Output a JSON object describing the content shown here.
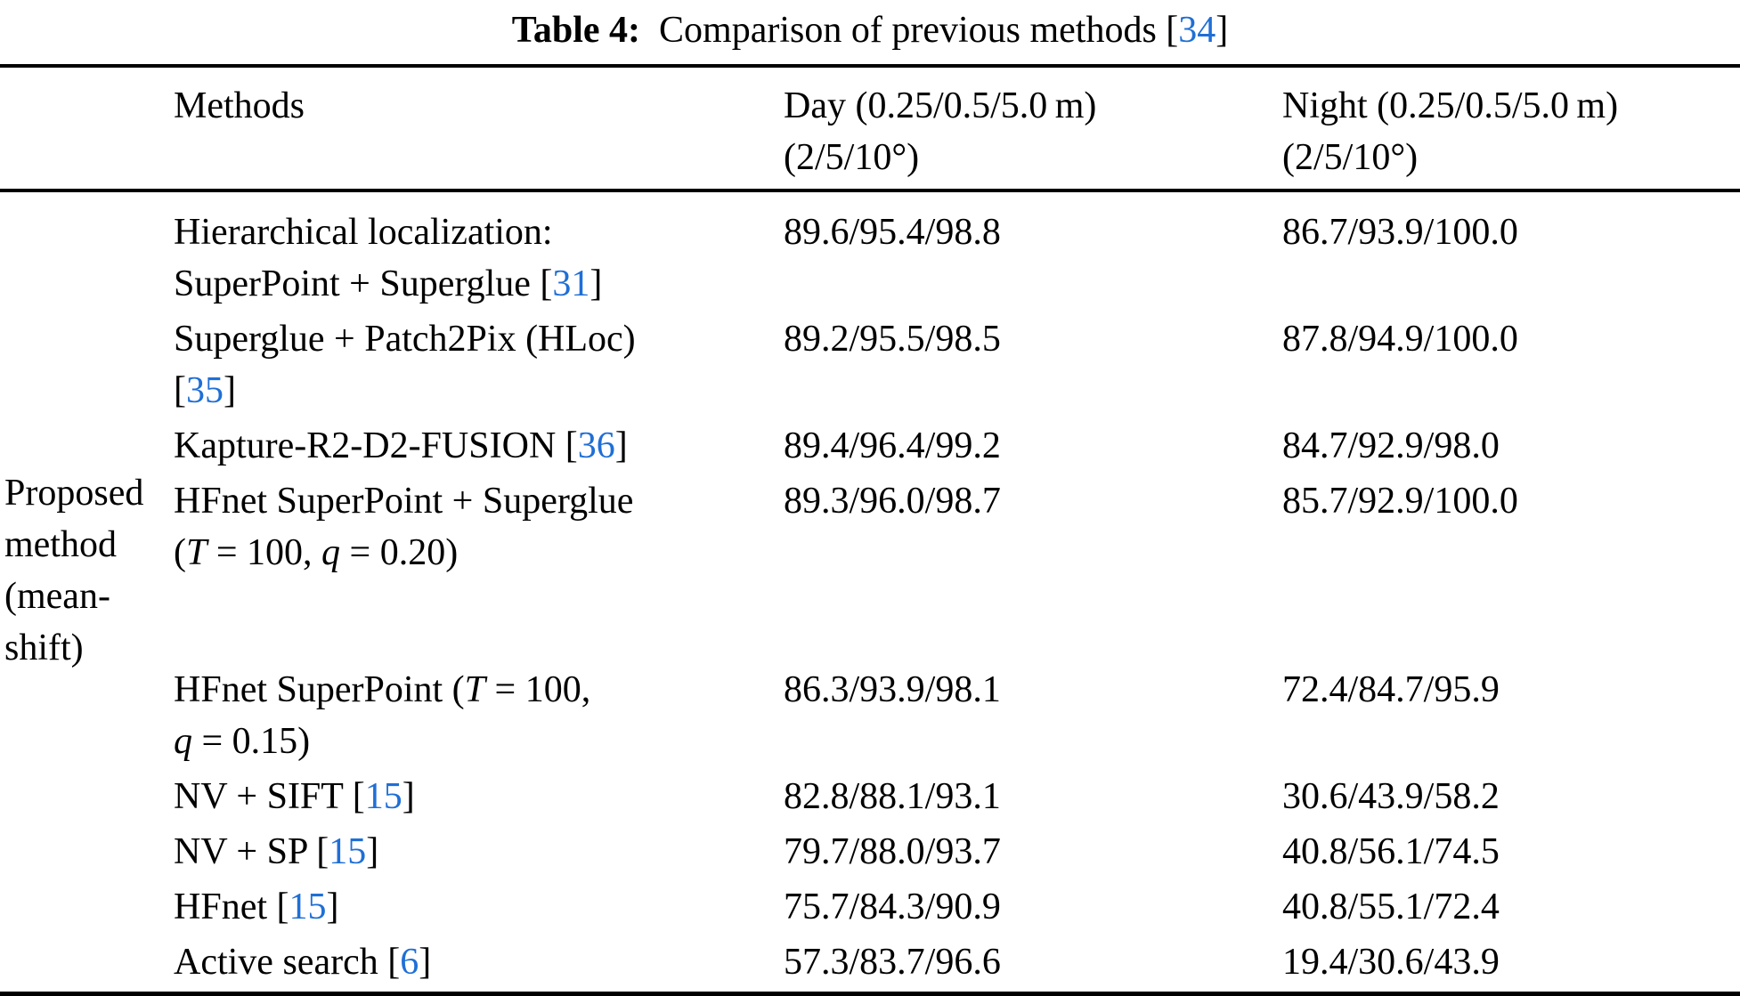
{
  "colors": {
    "citation": "#1f6fd6",
    "text": "#000000",
    "background": "#ffffff",
    "rule": "#000000"
  },
  "caption": {
    "segments": [
      {
        "t": "Table 4:",
        "b": true
      },
      {
        "t": " Comparison of previous methods ["
      },
      {
        "t": "34",
        "cite": true
      },
      {
        "t": "]"
      }
    ]
  },
  "table": {
    "header": {
      "methods": "Methods",
      "day_line1": "Day (0.25/0.5/5.0 m)",
      "day_line2": "(2/5/10°)",
      "night_line1": "Night (0.25/0.5/5.0 m)",
      "night_line2": "(2/5/10°)"
    },
    "row_group_label_lines": [
      "Proposed",
      "method",
      "(mean-",
      "shift)"
    ],
    "rows": [
      {
        "method_lines": [
          [
            {
              "t": "Hierarchical localization:"
            }
          ],
          [
            {
              "t": "SuperPoint + Superglue ["
            },
            {
              "t": "31",
              "cite": true
            },
            {
              "t": "]"
            }
          ]
        ],
        "day": "89.6/95.4/98.8",
        "night": "86.7/93.9/100.0"
      },
      {
        "method_lines": [
          [
            {
              "t": "Superglue + Patch2Pix (HLoc)"
            }
          ],
          [
            {
              "t": "["
            },
            {
              "t": "35",
              "cite": true
            },
            {
              "t": "]"
            }
          ]
        ],
        "day": "89.2/95.5/98.5",
        "night": "87.8/94.9/100.0"
      },
      {
        "method_lines": [
          [
            {
              "t": "Kapture-R2-D2-FUSION ["
            },
            {
              "t": "36",
              "cite": true
            },
            {
              "t": "]"
            }
          ]
        ],
        "day": "89.4/96.4/99.2",
        "night": "84.7/92.9/98.0"
      },
      {
        "method_lines": [
          [
            {
              "t": "HFnet SuperPoint + Superglue"
            }
          ],
          [
            {
              "t": "("
            },
            {
              "t": "T",
              "i": true
            },
            {
              "t": " = 100, "
            },
            {
              "t": "q",
              "i": true
            },
            {
              "t": " = 0.20)"
            }
          ]
        ],
        "day": "89.3/96.0/98.7",
        "night": "85.7/92.9/100.0",
        "extra_space": true
      },
      {
        "method_lines": [
          [
            {
              "t": "HFnet SuperPoint ("
            },
            {
              "t": "T",
              "i": true
            },
            {
              "t": " = 100,"
            }
          ],
          [
            {
              "t": "q",
              "i": true
            },
            {
              "t": " = 0.15)"
            }
          ]
        ],
        "day": "86.3/93.9/98.1",
        "night": "72.4/84.7/95.9"
      },
      {
        "method_lines": [
          [
            {
              "t": "NV + SIFT ["
            },
            {
              "t": "15",
              "cite": true
            },
            {
              "t": "]"
            }
          ]
        ],
        "day": "82.8/88.1/93.1",
        "night": "30.6/43.9/58.2"
      },
      {
        "method_lines": [
          [
            {
              "t": "NV + SP ["
            },
            {
              "t": "15",
              "cite": true
            },
            {
              "t": "]"
            }
          ]
        ],
        "day": "79.7/88.0/93.7",
        "night": "40.8/56.1/74.5"
      },
      {
        "method_lines": [
          [
            {
              "t": "HFnet ["
            },
            {
              "t": "15",
              "cite": true
            },
            {
              "t": "]"
            }
          ]
        ],
        "day": "75.7/84.3/90.9",
        "night": "40.8/55.1/72.4"
      },
      {
        "method_lines": [
          [
            {
              "t": "Active search ["
            },
            {
              "t": "6",
              "cite": true
            },
            {
              "t": "]"
            }
          ]
        ],
        "day": "57.3/83.7/96.6",
        "night": "19.4/30.6/43.9"
      }
    ]
  }
}
